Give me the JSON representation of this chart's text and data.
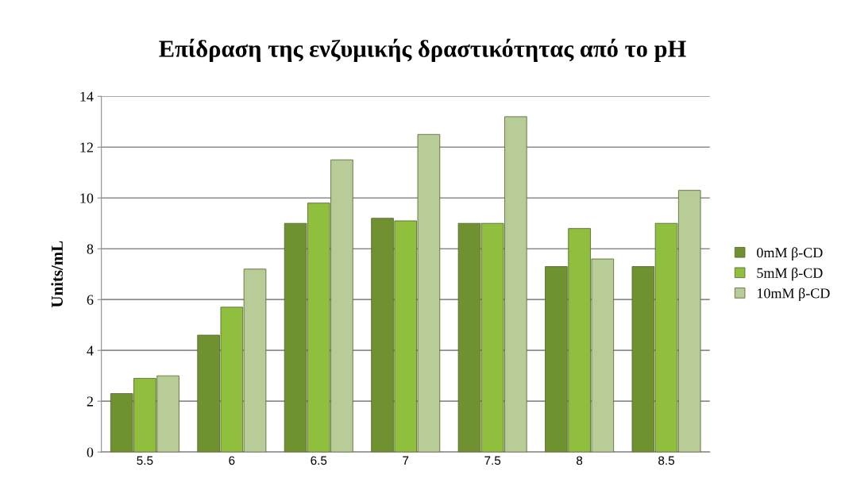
{
  "chart_data": {
    "type": "bar",
    "title": "Επίδραση της ενζυμικής δραστικότητας από το pH",
    "ylabel": "Units/mL",
    "categories": [
      "5.5",
      "6",
      "6.5",
      "7",
      "7.5",
      "8",
      "8.5"
    ],
    "series": [
      {
        "name": "0mM β-CD",
        "color": "#6f9130",
        "values": [
          2.3,
          4.6,
          9.0,
          9.2,
          9.0,
          7.3,
          7.3
        ]
      },
      {
        "name": "5mM β-CD",
        "color": "#8fbf3c",
        "values": [
          2.9,
          5.7,
          9.8,
          9.1,
          9.0,
          8.8,
          9.0
        ]
      },
      {
        "name": "10mM β-CD",
        "color": "#b8cc98",
        "values": [
          3.0,
          7.2,
          11.5,
          12.5,
          13.2,
          7.6,
          10.3
        ]
      }
    ],
    "ylim": [
      0,
      14
    ],
    "yticks": [
      0,
      2,
      4,
      6,
      8,
      10,
      12,
      14
    ],
    "grid": "y",
    "legend": "right"
  }
}
